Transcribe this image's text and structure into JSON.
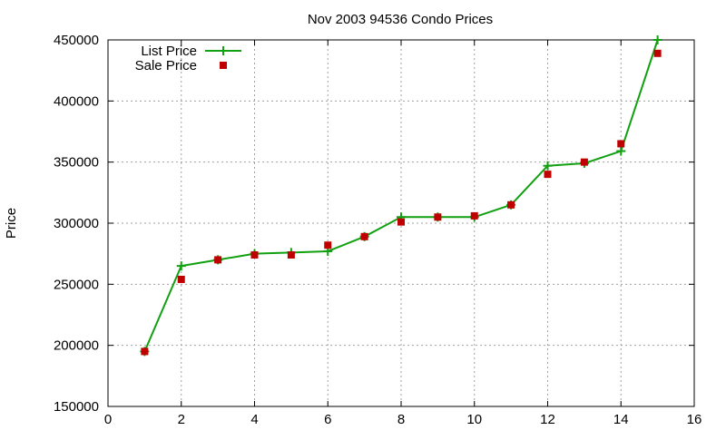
{
  "chart_data": {
    "type": "line",
    "title": "Nov 2003 94536 Condo Prices",
    "xlabel": "",
    "ylabel": "Price",
    "xlim": [
      0,
      16
    ],
    "ylim": [
      150000,
      450000
    ],
    "x_ticks": [
      0,
      2,
      4,
      6,
      8,
      10,
      12,
      14,
      16
    ],
    "y_ticks": [
      150000,
      200000,
      250000,
      300000,
      350000,
      400000,
      450000
    ],
    "x_tick_labels": [
      "0",
      "2",
      "4",
      "6",
      "8",
      "10",
      "12",
      "14",
      "16"
    ],
    "y_tick_labels": [
      "150000",
      "200000",
      "250000",
      "300000",
      "350000",
      "400000",
      "450000"
    ],
    "grid": true,
    "legend_position": "top-left",
    "series": [
      {
        "name": "List Price",
        "style": "line-with-plus-markers",
        "color": "#11a011",
        "x": [
          1,
          2,
          3,
          4,
          5,
          6,
          7,
          8,
          9,
          10,
          11,
          12,
          13,
          14,
          15
        ],
        "y": [
          195000,
          265000,
          270000,
          275000,
          276000,
          277000,
          289000,
          305000,
          305000,
          305000,
          315000,
          347000,
          349000,
          359000,
          450000
        ]
      },
      {
        "name": "Sale Price",
        "style": "square-markers",
        "color": "#c00000",
        "x": [
          1,
          2,
          3,
          4,
          5,
          6,
          7,
          8,
          9,
          10,
          11,
          12,
          13,
          14,
          15
        ],
        "y": [
          195000,
          254000,
          270000,
          274000,
          274000,
          282000,
          289000,
          301000,
          305000,
          306000,
          315000,
          340000,
          350000,
          365000,
          439000
        ]
      }
    ]
  }
}
